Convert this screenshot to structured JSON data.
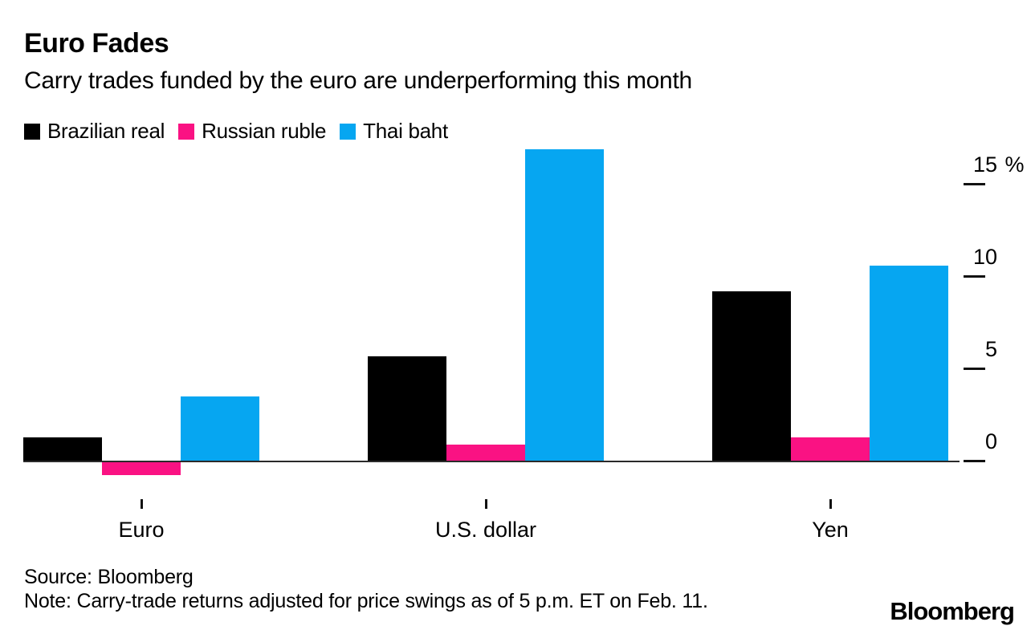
{
  "chart_data": {
    "type": "bar",
    "title": "Euro Fades",
    "subtitle": "Carry trades funded by the euro are underperforming this month",
    "categories": [
      "Euro",
      "U.S. dollar",
      "Yen"
    ],
    "series": [
      {
        "name": "Brazilian real",
        "color": "#000000",
        "values": [
          1.3,
          5.7,
          9.2
        ]
      },
      {
        "name": "Russian ruble",
        "color": "#fa1283",
        "values": [
          -0.7,
          0.9,
          1.3
        ]
      },
      {
        "name": "Thai baht",
        "color": "#06a6f1",
        "values": [
          3.5,
          16.9,
          10.6
        ]
      }
    ],
    "y_axis": {
      "ticks": [
        0,
        5,
        10,
        15
      ],
      "unit": "%",
      "side": "right",
      "ylim": [
        -1,
        17.5
      ]
    },
    "x_axis": {
      "tick_marks": true
    },
    "grid": false,
    "legend_position": "top-left",
    "baseline_color": "#2a2a2a"
  },
  "footer": {
    "source": "Source: Bloomberg",
    "note": "Note: Carry-trade returns adjusted for price swings as of 5 p.m. ET on Feb. 11.",
    "brand": "Bloomberg"
  }
}
